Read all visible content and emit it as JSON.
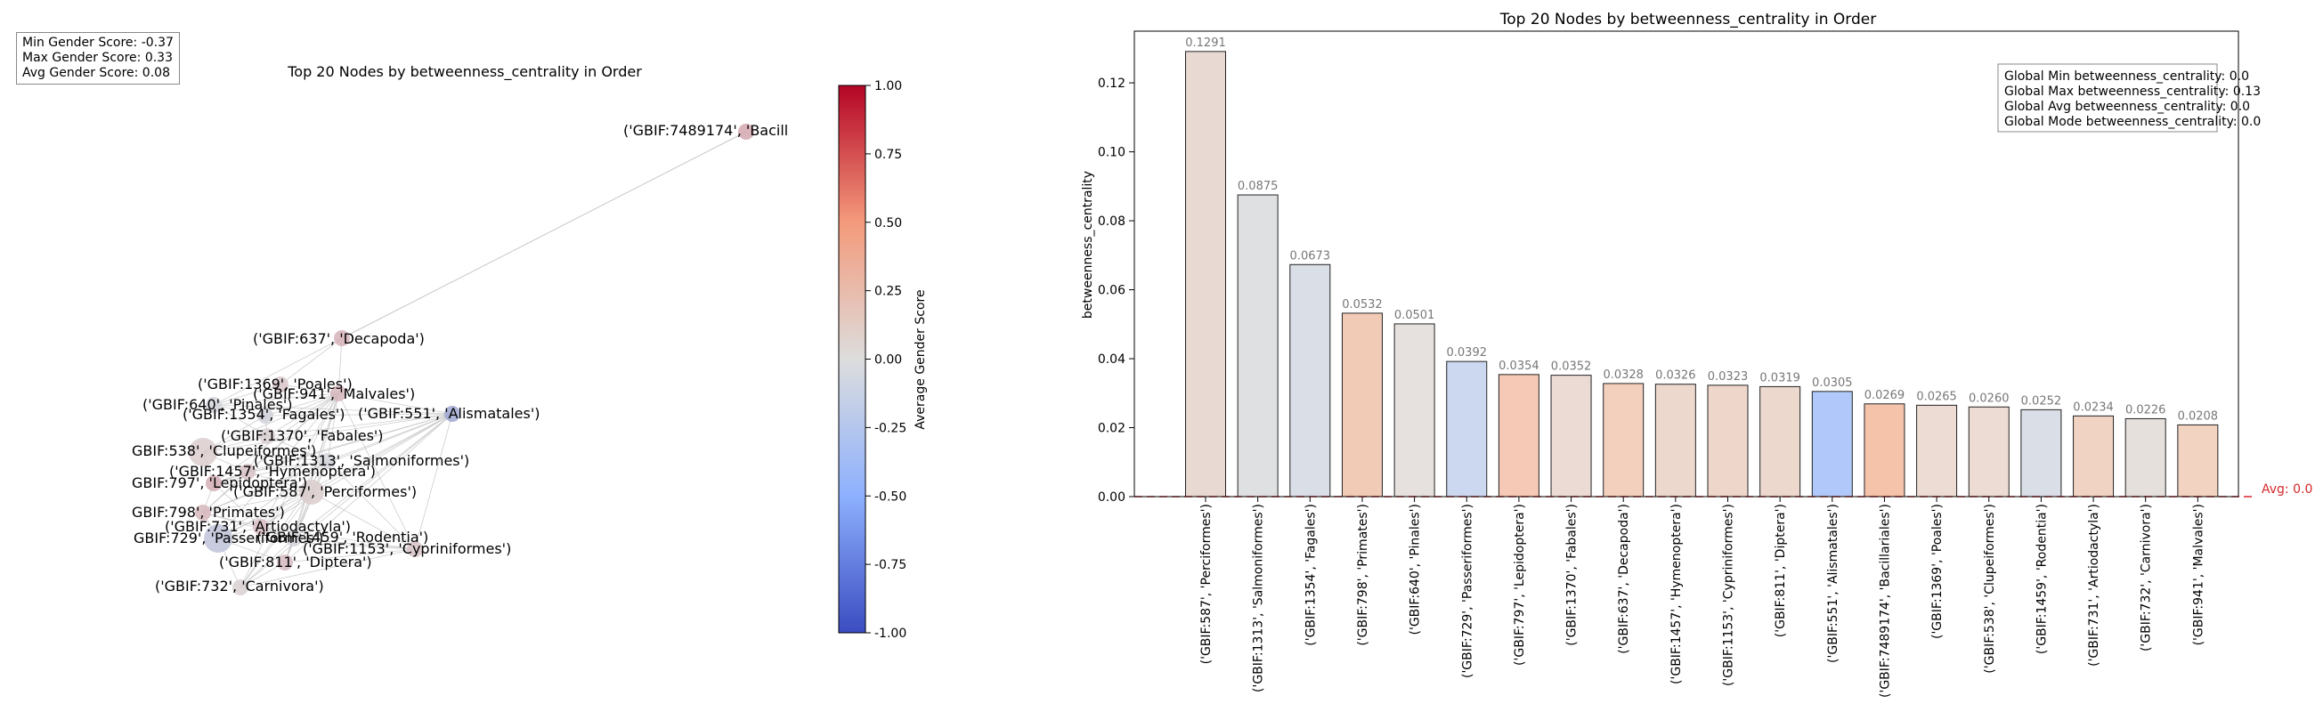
{
  "stats": {
    "min": "Min Gender Score: -0.37",
    "max": "Max Gender Score: 0.33",
    "avg": "Avg Gender Score: 0.08"
  },
  "network": {
    "title": "Top 20 Nodes by betweenness_centrality in Order",
    "nodes": [
      {
        "label": "('GBIF:7489174', 'Bacill",
        "score": 0.25
      },
      {
        "label": "('GBIF:637', 'Decapoda')",
        "score": 0.2
      },
      {
        "label": "('GBIF:1369', 'Poales')",
        "score": 0.1
      },
      {
        "label": "('GBIF:941', 'Malvales')",
        "score": 0.18
      },
      {
        "label": "('GBIF:640', 'Pinales')",
        "score": -0.05
      },
      {
        "label": "('GBIF:1354', 'Fagales')",
        "score": -0.08
      },
      {
        "label": "('GBIF:551', 'Alismatales')",
        "score": -0.37
      },
      {
        "label": "('GBIF:1370', 'Fabales')",
        "score": 0.06
      },
      {
        "label": "GBIF:538', 'Clupeiformes')",
        "score": 0.08
      },
      {
        "label": "('GBIF:1313', 'Salmoniformes')",
        "score": -0.05
      },
      {
        "label": "('GBIF:1457', 'Hymenoptera')",
        "score": 0.12
      },
      {
        "label": "GBIF:797', 'Lepidoptera')",
        "score": 0.22
      },
      {
        "label": "('GBIF:587', 'Perciformes')",
        "score": 0.08
      },
      {
        "label": "GBIF:798', 'Primates')",
        "score": 0.18
      },
      {
        "label": "('GBIF:731', 'Artiodactyla')",
        "score": 0.15
      },
      {
        "label": "GBIF:729', 'Passeriformes')",
        "score": -0.18
      },
      {
        "label": "('GBIF:1459', 'Rodentia')",
        "score": -0.06
      },
      {
        "label": "('GBIF:1153', 'Cypriniformes')",
        "score": 0.12
      },
      {
        "label": "('GBIF:811', 'Diptera')",
        "score": 0.15
      },
      {
        "label": "('GBIF:732', 'Carnivora')",
        "score": 0.06
      }
    ]
  },
  "colorbar": {
    "label": "Average Gender Score",
    "ticks": [
      "1.00",
      "0.75",
      "0.50",
      "0.25",
      "0.00",
      "-0.25",
      "-0.50",
      "-0.75",
      "-1.00"
    ],
    "range": [
      -1,
      1
    ],
    "colors": {
      "low": "#3b4cc0",
      "mid": "#dddddd",
      "high": "#b40426"
    }
  },
  "chart_data": {
    "type": "bar",
    "title": "Top 20 Nodes by betweenness_centrality in Order",
    "ylabel": "betweenness_centrality",
    "xlabel": "",
    "ylim": [
      0,
      0.135
    ],
    "yticks": [
      "0.00",
      "0.02",
      "0.04",
      "0.06",
      "0.08",
      "0.10",
      "0.12"
    ],
    "categories": [
      "('GBIF:587', 'Perciformes')",
      "('GBIF:1313', 'Salmoniformes')",
      "('GBIF:1354', 'Fagales')",
      "('GBIF:798', 'Primates')",
      "('GBIF:640', 'Pinales')",
      "('GBIF:729', 'Passeriformes')",
      "('GBIF:797', 'Lepidoptera')",
      "('GBIF:1370', 'Fabales')",
      "('GBIF:637', 'Decapoda')",
      "('GBIF:1457', 'Hymenoptera')",
      "('GBIF:1153', 'Cypriniformes')",
      "('GBIF:811', 'Diptera')",
      "('GBIF:551', 'Alismatales')",
      "('GBIF:7489174', 'Bacillariales')",
      "('GBIF:1369', 'Poales')",
      "('GBIF:538', 'Clupeiformes')",
      "('GBIF:1459', 'Rodentia')",
      "('GBIF:731', 'Artiodactyla')",
      "('GBIF:732', 'Carnivora')",
      "('GBIF:941', 'Malvales')"
    ],
    "values": [
      0.1291,
      0.0875,
      0.0673,
      0.0532,
      0.0501,
      0.0392,
      0.0354,
      0.0352,
      0.0328,
      0.0326,
      0.0323,
      0.0319,
      0.0305,
      0.0269,
      0.0265,
      0.026,
      0.0252,
      0.0234,
      0.0226,
      0.0208
    ],
    "value_labels": [
      "0.1291",
      "0.0875",
      "0.0673",
      "0.0532",
      "0.0501",
      "0.0392",
      "0.0354",
      "0.0352",
      "0.0328",
      "0.0326",
      "0.0323",
      "0.0319",
      "0.0305",
      "0.0269",
      "0.0265",
      "0.0260",
      "0.0252",
      "0.0234",
      "0.0226",
      "0.0208"
    ],
    "bar_colors": [
      "#e8d9d2",
      "#dfe0e2",
      "#dadee6",
      "#f2cbb7",
      "#e6e1de",
      "#cbd8f0",
      "#f5c9b5",
      "#ecdbd4",
      "#f3cfbd",
      "#edd8cd",
      "#eed6ca",
      "#edd8cd",
      "#b1c9fa",
      "#f5c2aa",
      "#eddcd4",
      "#eddcd4",
      "#dadee6",
      "#f1d3c3",
      "#e6e0dc",
      "#f2d3c1"
    ],
    "avg_line": {
      "value": 0.0,
      "label": "Avg: 0.0",
      "color": "#d62728"
    },
    "legend": {
      "position": "top-right",
      "lines": [
        "Global Min betweenness_centrality: 0.0",
        "Global Max betweenness_centrality: 0.13",
        "Global Avg betweenness_centrality: 0.0",
        "Global Mode betweenness_centrality: 0.0"
      ]
    }
  }
}
